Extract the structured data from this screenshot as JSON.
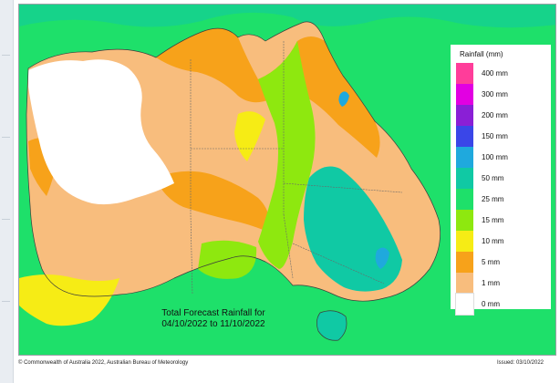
{
  "map": {
    "title_line1": "Total Forecast Rainfall for",
    "title_line2": "04/10/2022 to 11/10/2022"
  },
  "legend": {
    "title": "Rainfall (mm)",
    "items": [
      {
        "label": "400 mm",
        "color": "#ff3d9a"
      },
      {
        "label": "300 mm",
        "color": "#e200e2"
      },
      {
        "label": "200 mm",
        "color": "#8a1fd6"
      },
      {
        "label": "150 mm",
        "color": "#3a46e8"
      },
      {
        "label": "100 mm",
        "color": "#1fa9dd"
      },
      {
        "label": "50 mm",
        "color": "#10c9a4"
      },
      {
        "label": "25 mm",
        "color": "#1ee06a"
      },
      {
        "label": "15 mm",
        "color": "#8ee80f"
      },
      {
        "label": "10 mm",
        "color": "#f6ec15"
      },
      {
        "label": "5 mm",
        "color": "#f7a21a"
      },
      {
        "label": "1 mm",
        "color": "#f8bd7d"
      },
      {
        "label": "0 mm",
        "color": "#ffffff"
      }
    ]
  },
  "colors": {
    "ocean": "#1ee06a",
    "dry": "#ffffff",
    "low": "#f8bd7d",
    "five": "#f7a21a",
    "ten": "#f6ec15",
    "fifteen": "#8ee80f",
    "fifty": "#10c9a4",
    "hundred": "#1fa9dd"
  },
  "footer": {
    "copyright": "© Commonwealth of Australia 2022, Australian Bureau of Meteorology",
    "issued": "Issued: 03/10/2022"
  }
}
